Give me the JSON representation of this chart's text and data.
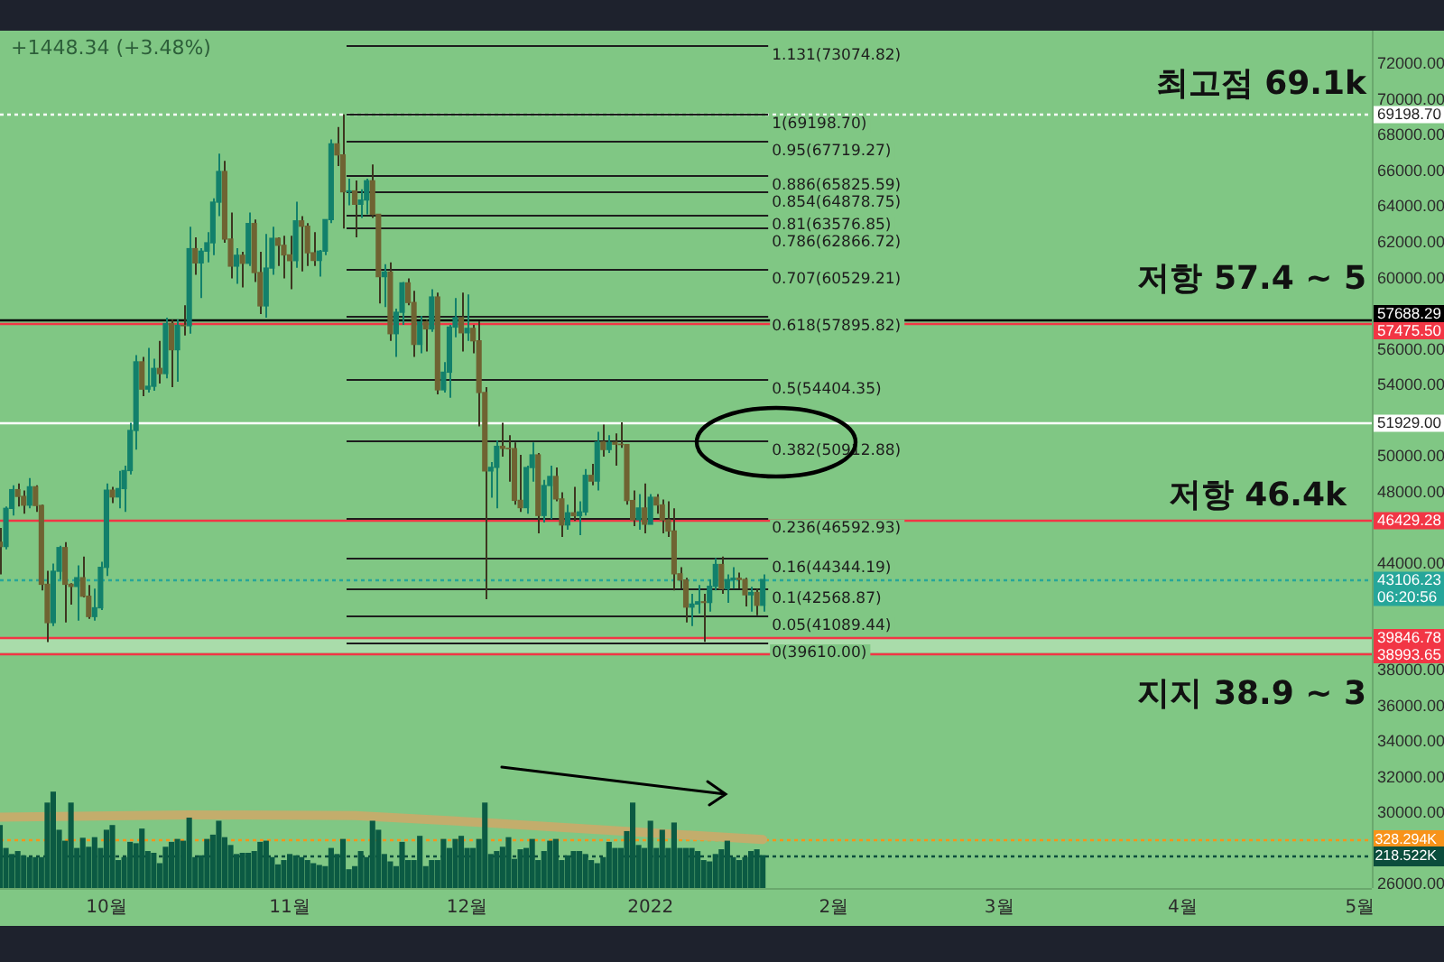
{
  "chart_data": {
    "type": "candlestick",
    "x": [
      "2021-09-13",
      "2021-09-14",
      "2021-09-15",
      "2021-09-16",
      "2021-09-17",
      "2021-09-18",
      "2021-09-19",
      "2021-09-20",
      "2021-09-21",
      "2021-09-22",
      "2021-09-23",
      "2021-09-24",
      "2021-09-25",
      "2021-09-26",
      "2021-09-27",
      "2021-09-28",
      "2021-09-29",
      "2021-09-30",
      "2021-10-01",
      "2021-10-02",
      "2021-10-03",
      "2021-10-04",
      "2021-10-05",
      "2021-10-06",
      "2021-10-07",
      "2021-10-08",
      "2021-10-09",
      "2021-10-10",
      "2021-10-11",
      "2021-10-12",
      "2021-10-13",
      "2021-10-14",
      "2021-10-15",
      "2021-10-16",
      "2021-10-17",
      "2021-10-18",
      "2021-10-19",
      "2021-10-20",
      "2021-10-21",
      "2021-10-22",
      "2021-10-23",
      "2021-10-24",
      "2021-10-25",
      "2021-10-26",
      "2021-10-27",
      "2021-10-28",
      "2021-10-29",
      "2021-10-30",
      "2021-10-31",
      "2021-11-01",
      "2021-11-02",
      "2021-11-03",
      "2021-11-04",
      "2021-11-05",
      "2021-11-06",
      "2021-11-07",
      "2021-11-08",
      "2021-11-09",
      "2021-11-10",
      "2021-11-11",
      "2021-11-12",
      "2021-11-13",
      "2021-11-14",
      "2021-11-15",
      "2021-11-16",
      "2021-11-17",
      "2021-11-18",
      "2021-11-19",
      "2021-11-20",
      "2021-11-21",
      "2021-11-22",
      "2021-11-23",
      "2021-11-24",
      "2021-11-25",
      "2021-11-26",
      "2021-11-27",
      "2021-11-28",
      "2021-11-29",
      "2021-11-30",
      "2021-12-01",
      "2021-12-02",
      "2021-12-03",
      "2021-12-04",
      "2021-12-05",
      "2021-12-06",
      "2021-12-07",
      "2021-12-08",
      "2021-12-09",
      "2021-12-10",
      "2021-12-11",
      "2021-12-12",
      "2021-12-13",
      "2021-12-14",
      "2021-12-15",
      "2021-12-16",
      "2021-12-17",
      "2021-12-18",
      "2021-12-19",
      "2021-12-20",
      "2021-12-21",
      "2021-12-22",
      "2021-12-23",
      "2021-12-24",
      "2021-12-25",
      "2021-12-26",
      "2021-12-27",
      "2021-12-28",
      "2021-12-29",
      "2021-12-30",
      "2021-12-31",
      "2022-01-01",
      "2022-01-02",
      "2022-01-03",
      "2022-01-04",
      "2022-01-05",
      "2022-01-06",
      "2022-01-07",
      "2022-01-08",
      "2022-01-09",
      "2022-01-10",
      "2022-01-11",
      "2022-01-12",
      "2022-01-13",
      "2022-01-14",
      "2022-01-15",
      "2022-01-16",
      "2022-01-17",
      "2022-01-18",
      "2022-01-19",
      "2022-01-20"
    ],
    "ohlc": [
      [
        45200,
        46000,
        43400,
        44960
      ],
      [
        44960,
        47200,
        44800,
        47100
      ],
      [
        47100,
        48400,
        46700,
        48150
      ],
      [
        48150,
        48500,
        47200,
        47770
      ],
      [
        47770,
        48100,
        46800,
        47280
      ],
      [
        47280,
        48800,
        47100,
        48310
      ],
      [
        48310,
        48400,
        46900,
        47260
      ],
      [
        47260,
        47300,
        42500,
        42840
      ],
      [
        42840,
        43600,
        39600,
        40690
      ],
      [
        40690,
        44000,
        40500,
        43570
      ],
      [
        43570,
        45000,
        43100,
        44900
      ],
      [
        44900,
        45200,
        40700,
        42840
      ],
      [
        42840,
        42900,
        41700,
        42720
      ],
      [
        42720,
        43900,
        40800,
        43210
      ],
      [
        43210,
        44400,
        42100,
        42170
      ],
      [
        42170,
        42800,
        40900,
        41030
      ],
      [
        41030,
        42600,
        40800,
        41520
      ],
      [
        41520,
        44100,
        41400,
        43790
      ],
      [
        43790,
        48500,
        43300,
        48120
      ],
      [
        48120,
        48300,
        47400,
        47740
      ],
      [
        47740,
        49200,
        47100,
        48210
      ],
      [
        48210,
        49500,
        46900,
        49220
      ],
      [
        49220,
        51900,
        49000,
        51470
      ],
      [
        51470,
        55700,
        50400,
        55320
      ],
      [
        55320,
        55600,
        53400,
        53790
      ],
      [
        53790,
        56100,
        53600,
        53950
      ],
      [
        53950,
        55500,
        53700,
        54950
      ],
      [
        54950,
        56500,
        54100,
        54660
      ],
      [
        54660,
        57800,
        54400,
        57470
      ],
      [
        57470,
        57700,
        53900,
        56000
      ],
      [
        56000,
        57700,
        54200,
        57370
      ],
      [
        57370,
        58500,
        56800,
        57350
      ],
      [
        57350,
        62900,
        56900,
        61670
      ],
      [
        61670,
        62300,
        60200,
        60870
      ],
      [
        60870,
        61700,
        58900,
        61530
      ],
      [
        61530,
        62600,
        60900,
        62000
      ],
      [
        62000,
        64500,
        61300,
        64280
      ],
      [
        64280,
        67000,
        63500,
        66000
      ],
      [
        66000,
        66600,
        62000,
        62210
      ],
      [
        62210,
        63700,
        60000,
        60690
      ],
      [
        60690,
        61700,
        59700,
        61300
      ],
      [
        61300,
        61500,
        59500,
        60850
      ],
      [
        60850,
        63700,
        60700,
        63080
      ],
      [
        63080,
        63300,
        59800,
        60330
      ],
      [
        60330,
        61500,
        58000,
        58460
      ],
      [
        58460,
        62500,
        57800,
        60580
      ],
      [
        60580,
        62900,
        60200,
        62250
      ],
      [
        62250,
        62300,
        60700,
        61860
      ],
      [
        61860,
        62400,
        60000,
        61320
      ],
      [
        61320,
        62400,
        59400,
        61000
      ],
      [
        61000,
        64300,
        60600,
        63230
      ],
      [
        63230,
        63500,
        60400,
        62930
      ],
      [
        62930,
        63100,
        60700,
        61440
      ],
      [
        61440,
        62600,
        60700,
        61010
      ],
      [
        61010,
        61600,
        60100,
        61530
      ],
      [
        61530,
        63300,
        61300,
        63300
      ],
      [
        63300,
        67800,
        63100,
        67550
      ],
      [
        67550,
        68500,
        66300,
        66930
      ],
      [
        66930,
        69198.7,
        62800,
        64860
      ],
      [
        64860,
        65600,
        64100,
        64910
      ],
      [
        64910,
        65500,
        62300,
        64160
      ],
      [
        64160,
        65000,
        63400,
        64400
      ],
      [
        64400,
        65600,
        63600,
        65480
      ],
      [
        65480,
        66400,
        63400,
        63600
      ],
      [
        63600,
        63600,
        58600,
        60100
      ],
      [
        60100,
        60800,
        58400,
        60360
      ],
      [
        60360,
        60900,
        56500,
        56900
      ],
      [
        56900,
        58300,
        55600,
        58100
      ],
      [
        58100,
        59800,
        57400,
        59750
      ],
      [
        59750,
        60000,
        58500,
        58650
      ],
      [
        58650,
        59300,
        55600,
        56300
      ],
      [
        56300,
        57900,
        55800,
        57560
      ],
      [
        57560,
        57700,
        55900,
        57170
      ],
      [
        57170,
        59400,
        57000,
        58960
      ],
      [
        58960,
        59200,
        53500,
        53750
      ],
      [
        53750,
        55300,
        53600,
        54740
      ],
      [
        54740,
        57400,
        53300,
        57270
      ],
      [
        57270,
        58900,
        56700,
        57800
      ],
      [
        57800,
        59200,
        55900,
        56950
      ],
      [
        56950,
        59100,
        56500,
        57200
      ],
      [
        57200,
        57400,
        55800,
        56500
      ],
      [
        56500,
        57600,
        51700,
        53600
      ],
      [
        53600,
        53900,
        42000,
        49200
      ],
      [
        49200,
        49700,
        47700,
        49400
      ],
      [
        49400,
        50900,
        47100,
        50580
      ],
      [
        50580,
        51900,
        50000,
        50470
      ],
      [
        50470,
        51200,
        48600,
        50450
      ],
      [
        50450,
        50800,
        47300,
        47550
      ],
      [
        47550,
        50100,
        46900,
        47140
      ],
      [
        47140,
        49500,
        46800,
        49390
      ],
      [
        49390,
        50800,
        48600,
        50100
      ],
      [
        50100,
        50200,
        45700,
        46700
      ],
      [
        46700,
        48700,
        46300,
        48380
      ],
      [
        48380,
        49500,
        46500,
        48890
      ],
      [
        48890,
        49400,
        47500,
        47630
      ],
      [
        47630,
        48000,
        45500,
        46170
      ],
      [
        46170,
        47300,
        45900,
        46850
      ],
      [
        46850,
        48300,
        46400,
        46690
      ],
      [
        46690,
        47500,
        45600,
        46900
      ],
      [
        46900,
        49300,
        46700,
        48950
      ],
      [
        48950,
        49600,
        48400,
        48630
      ],
      [
        48630,
        51400,
        48100,
        50820
      ],
      [
        50820,
        51800,
        50000,
        50400
      ],
      [
        50400,
        51200,
        50200,
        50800
      ],
      [
        50800,
        51300,
        49500,
        50700
      ],
      [
        50700,
        51929,
        50500,
        50680
      ],
      [
        50680,
        50700,
        47300,
        47540
      ],
      [
        47540,
        48100,
        46100,
        46460
      ],
      [
        46460,
        47900,
        45900,
        47120
      ],
      [
        47120,
        48500,
        45700,
        46210
      ],
      [
        46210,
        47900,
        46200,
        47720
      ],
      [
        47720,
        47900,
        46800,
        47290
      ],
      [
        47290,
        47600,
        45700,
        46450
      ],
      [
        46450,
        47500,
        45500,
        45830
      ],
      [
        45830,
        47100,
        42500,
        43430
      ],
      [
        43430,
        43800,
        42600,
        43080
      ],
      [
        43080,
        43200,
        40700,
        41560
      ],
      [
        41560,
        42300,
        40500,
        41730
      ],
      [
        41730,
        42800,
        41200,
        41860
      ],
      [
        41860,
        42300,
        39610,
        41820
      ],
      [
        41820,
        43100,
        41300,
        42730
      ],
      [
        42730,
        44300,
        42500,
        43950
      ],
      [
        43950,
        44400,
        42300,
        42590
      ],
      [
        42590,
        43400,
        41800,
        43100
      ],
      [
        43100,
        43800,
        42600,
        43180
      ],
      [
        43180,
        43500,
        42600,
        43110
      ],
      [
        43110,
        43200,
        41600,
        42250
      ],
      [
        42250,
        42700,
        41300,
        42380
      ],
      [
        42380,
        42600,
        41100,
        41660
      ],
      [
        41660,
        43400,
        41300,
        43106.23
      ]
    ],
    "series": [
      {
        "type": "bar",
        "axis": "y2",
        "color": "#0b5a43",
        "values": [
          422,
          267,
          226,
          246,
          217,
          205,
          205,
          205,
          574,
          648,
          390,
          316,
          574,
          267,
          336,
          275,
          340,
          267,
          390,
          422,
          185,
          205,
          308,
          299,
          398,
          246,
          234,
          164,
          275,
          308,
          328,
          316,
          472,
          205,
          217,
          328,
          357,
          451,
          340,
          287,
          226,
          234,
          234,
          246,
          308,
          316,
          205,
          156,
          185,
          226,
          217,
          205,
          185,
          164,
          152,
          144,
          267,
          226,
          328,
          123,
          144,
          246,
          205,
          451,
          390,
          226,
          176,
          144,
          308,
          185,
          185,
          349,
          144,
          185,
          185,
          328,
          267,
          328,
          349,
          267,
          267,
          328,
          574,
          226,
          246,
          275,
          340,
          193,
          258,
          267,
          328,
          185,
          246,
          316,
          328,
          185,
          217,
          246,
          246,
          226,
          185,
          164,
          205,
          308,
          267,
          267,
          381,
          574,
          287,
          267,
          451,
          267,
          390,
          267,
          439,
          267,
          267,
          267,
          246,
          185,
          176,
          226,
          258,
          316,
          205,
          185,
          205,
          246,
          258,
          218.522
        ]
      },
      {
        "type": "line",
        "axis": "y2",
        "color": "#c3ad6c",
        "x": [
          "2021-09-13",
          "2021-10-15",
          "2021-11-12",
          "2021-12-05",
          "2021-12-23",
          "2022-01-20"
        ],
        "values": [
          480,
          495,
          490,
          440,
          395,
          328.294
        ]
      }
    ],
    "xlim": [
      "2021-09-13",
      "2022-05-03"
    ],
    "xticks": [
      {
        "value": "2021-10-01",
        "label": "10월"
      },
      {
        "value": "2021-11-01",
        "label": "11월"
      },
      {
        "value": "2021-12-01",
        "label": "12월"
      },
      {
        "value": "2022-01-01",
        "label": "2022"
      },
      {
        "value": "2022-02-01",
        "label": "2월"
      },
      {
        "value": "2022-03-01",
        "label": "3월"
      },
      {
        "value": "2022-04-01",
        "label": "4월"
      },
      {
        "value": "2022-05-01",
        "label": "5월"
      }
    ],
    "ylim": [
      25800,
      73900
    ],
    "yticks": [
      {
        "value": 26000,
        "label": "26000.00"
      },
      {
        "value": 30000,
        "label": "30000.00"
      },
      {
        "value": 32000,
        "label": "32000.00"
      },
      {
        "value": 34000,
        "label": "34000.00"
      },
      {
        "value": 36000,
        "label": "36000.00"
      },
      {
        "value": 38000,
        "label": "38000.00"
      },
      {
        "value": 44000,
        "label": "44000.00"
      },
      {
        "value": 48000,
        "label": "48000.00"
      },
      {
        "value": 50000,
        "label": "50000.00"
      },
      {
        "value": 54000,
        "label": "54000.00"
      },
      {
        "value": 56000,
        "label": "56000.00"
      },
      {
        "value": 60000,
        "label": "60000.00"
      },
      {
        "value": 62000,
        "label": "62000.00"
      },
      {
        "value": 64000,
        "label": "64000.00"
      },
      {
        "value": 66000,
        "label": "66000.00"
      },
      {
        "value": 68000,
        "label": "68000.00"
      },
      {
        "value": 70000,
        "label": "70000.00"
      },
      {
        "value": 72000,
        "label": "72000.00"
      }
    ],
    "y2lim": [
      0,
      5800
    ],
    "y2ticks": [
      {
        "value": 218.522,
        "label": "218.522K"
      },
      {
        "value": 328.294,
        "label": "328.294K"
      }
    ],
    "bands": [
      {
        "axis": "y",
        "from": 38993.65,
        "to": 39846.78,
        "color": "#a9dcaa"
      }
    ],
    "ref_lines": [
      {
        "axis": "y",
        "value": 69198.7,
        "label": "69198.70",
        "color": "#ffffff",
        "line_style": "dotted"
      },
      {
        "axis": "y",
        "value": 57688.29,
        "label": "57688.29",
        "color": "#000000"
      },
      {
        "axis": "y",
        "value": 57475.5,
        "label": "57475.50",
        "color": "#f23645"
      },
      {
        "axis": "y",
        "value": 51929,
        "label": "51929.00",
        "color": "#ffffff"
      },
      {
        "axis": "y",
        "value": 46429.28,
        "label": "46429.28",
        "color": "#f23645"
      },
      {
        "axis": "y",
        "value": 43106.23,
        "label": "43106.23\n06:20:56",
        "color": "#26a69a",
        "line_style": "dotted"
      },
      {
        "axis": "y",
        "value": 39846.78,
        "label": "39846.78",
        "color": "#f23645"
      },
      {
        "axis": "y",
        "value": 38993.65,
        "label": "38993.65",
        "color": "#f23645"
      },
      {
        "axis": "y2",
        "value": 328.294,
        "color": "#f7931a",
        "line_style": "dotted"
      },
      {
        "axis": "y2",
        "value": 218.522,
        "color": "#0b4d3c",
        "line_style": "dotted"
      },
      {
        "axis": "y",
        "value": 73074.82,
        "label": "1.131(73074.82)"
      },
      {
        "axis": "y",
        "value": 69198.7,
        "label": "1(69198.70)"
      },
      {
        "axis": "y",
        "value": 67719.27,
        "label": "0.95(67719.27)"
      },
      {
        "axis": "y",
        "value": 65825.59,
        "label": "0.886(65825.59)"
      },
      {
        "axis": "y",
        "value": 64878.75,
        "label": "0.854(64878.75)"
      },
      {
        "axis": "y",
        "value": 63576.85,
        "label": "0.81(63576.85)"
      },
      {
        "axis": "y",
        "value": 62866.72,
        "label": "0.786(62866.72)"
      },
      {
        "axis": "y",
        "value": 60529.21,
        "label": "0.707(60529.21)"
      },
      {
        "axis": "y",
        "value": 57895.82,
        "label": "0.618(57895.82)"
      },
      {
        "axis": "y",
        "value": 54404.35,
        "label": "0.5(54404.35)"
      },
      {
        "axis": "y",
        "value": 50912.88,
        "label": "0.382(50912.88)"
      },
      {
        "axis": "y",
        "value": 46592.93,
        "label": "0.236(46592.93)"
      },
      {
        "axis": "y",
        "value": 44344.19,
        "label": "0.16(44344.19)"
      },
      {
        "axis": "y",
        "value": 42568.87,
        "label": "0.1(42568.87)"
      },
      {
        "axis": "y",
        "value": 41089.44,
        "label": "0.05(41089.44)"
      },
      {
        "axis": "y",
        "value": 39610,
        "label": "0(39610.00)"
      }
    ],
    "annotations": [
      "+1448.34 (+3.48%)",
      "최고점 69.1k",
      "저항 57.4 ~ 5",
      "저항 46.4k",
      "지지 38.9 ~ 3"
    ]
  }
}
